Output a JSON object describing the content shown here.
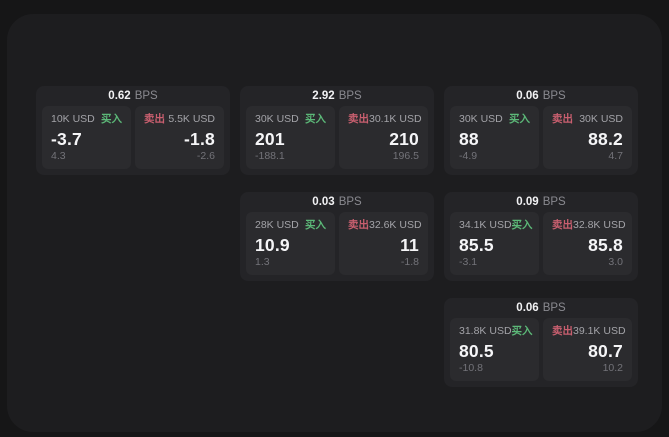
{
  "labels": {
    "buy": "买入",
    "sell": "卖出",
    "bps_unit": "BPS"
  },
  "colors": {
    "buy": "#5cb878",
    "sell": "#c95f6f",
    "surface": "#1d1d1f",
    "card": "#242427",
    "quote_panel": "#2b2b2e",
    "background": "#161617"
  },
  "cards": [
    {
      "bps": "0.62",
      "buy": {
        "size": "10K USD",
        "value": "-3.7",
        "sub": "4.3"
      },
      "sell": {
        "size": "5.5K USD",
        "value": "-1.8",
        "sub": "-2.6"
      }
    },
    {
      "bps": "2.92",
      "buy": {
        "size": "30K USD",
        "value": "201",
        "sub": "-188.1"
      },
      "sell": {
        "size": "30.1K USD",
        "value": "210",
        "sub": "196.5"
      }
    },
    {
      "bps": "0.06",
      "buy": {
        "size": "30K USD",
        "value": "88",
        "sub": "-4.9"
      },
      "sell": {
        "size": "30K USD",
        "value": "88.2",
        "sub": "4.7"
      }
    },
    {
      "bps": "0.03",
      "buy": {
        "size": "28K USD",
        "value": "10.9",
        "sub": "1.3"
      },
      "sell": {
        "size": "32.6K USD",
        "value": "11",
        "sub": "-1.8"
      }
    },
    {
      "bps": "0.09",
      "buy": {
        "size": "34.1K USD",
        "value": "85.5",
        "sub": "-3.1"
      },
      "sell": {
        "size": "32.8K USD",
        "value": "85.8",
        "sub": "3.0"
      }
    },
    {
      "bps": "0.06",
      "buy": {
        "size": "31.8K USD",
        "value": "80.5",
        "sub": "-10.8"
      },
      "sell": {
        "size": "39.1K USD",
        "value": "80.7",
        "sub": "10.2"
      }
    }
  ]
}
